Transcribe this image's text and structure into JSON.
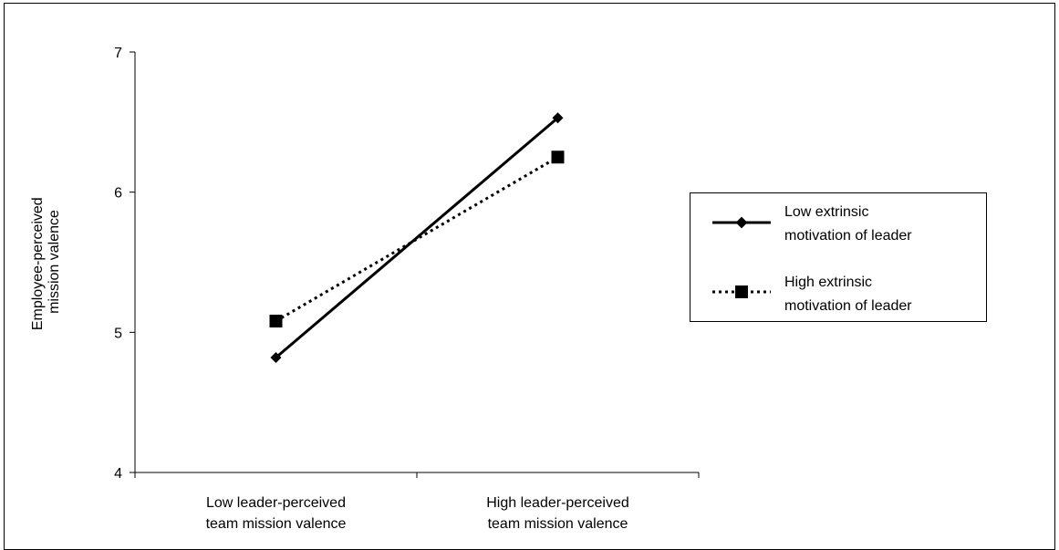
{
  "chart_data": {
    "type": "line",
    "categories": [
      [
        "Low leader-perceived",
        "team mission valence"
      ],
      [
        "High leader-perceived",
        "team mission valence"
      ]
    ],
    "ylabel": [
      "Employee-perceived",
      "mission valence"
    ],
    "ylim": [
      4,
      7
    ],
    "yticks": [
      "4",
      "5",
      "6",
      "7"
    ],
    "grid": false,
    "legend_position": "right",
    "series": [
      {
        "name": [
          "Low extrinsic",
          "motivation of leader"
        ],
        "values": [
          4.82,
          6.53
        ],
        "line_style": "solid",
        "marker": "diamond",
        "color": "#000000"
      },
      {
        "name": [
          "High extrinsic",
          "motivation of leader"
        ],
        "values": [
          5.08,
          6.25
        ],
        "line_style": "dotted",
        "marker": "square",
        "color": "#000000"
      }
    ]
  }
}
